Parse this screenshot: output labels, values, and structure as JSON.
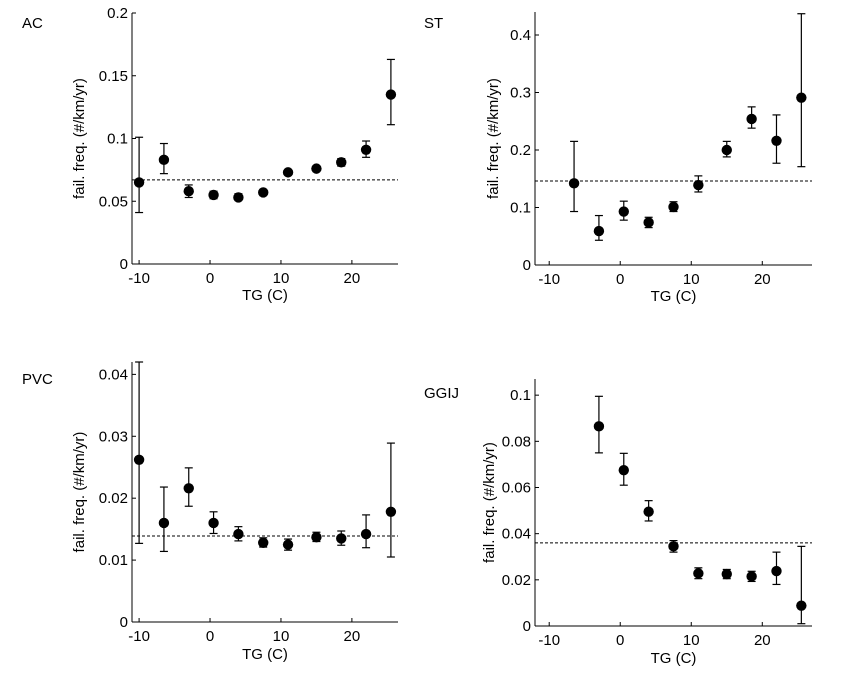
{
  "figure": {
    "background": "#ffffff",
    "marker_color": "#000000"
  },
  "chart_data": [
    {
      "type": "scatter",
      "panel_label": "AC",
      "xlabel": "TG (C)",
      "ylabel": "fail. freq. (#/km/yr)",
      "xlim": [
        -11,
        26.5
      ],
      "ylim": [
        0,
        0.2
      ],
      "xticks": [
        -10,
        0,
        10,
        20
      ],
      "xtick_labels": [
        "-10",
        "0",
        "10",
        "20"
      ],
      "yticks": [
        0,
        0.05,
        0.1,
        0.15,
        0.2
      ],
      "ytick_labels": [
        "0",
        "0.05",
        "0.1",
        "0.15",
        "0.2"
      ],
      "reference_line": 0.067,
      "series": [
        {
          "x": [
            -10,
            -6.5,
            -3,
            0.5,
            4,
            7.5,
            11,
            15,
            18.5,
            22,
            25.5
          ],
          "y": [
            0.065,
            0.083,
            0.058,
            0.055,
            0.053,
            0.057,
            0.073,
            0.076,
            0.081,
            0.091,
            0.135
          ],
          "err_low": [
            0.041,
            0.072,
            0.053,
            0.052,
            0.051,
            0.055,
            0.071,
            0.074,
            0.078,
            0.085,
            0.111
          ],
          "err_high": [
            0.101,
            0.096,
            0.063,
            0.058,
            0.056,
            0.059,
            0.075,
            0.078,
            0.084,
            0.098,
            0.163
          ]
        }
      ]
    },
    {
      "type": "scatter",
      "panel_label": "ST",
      "xlabel": "TG (C)",
      "ylabel": "fail. freq. (#/km/yr)",
      "xlim": [
        -12,
        27
      ],
      "ylim": [
        0,
        0.44
      ],
      "xticks": [
        -10,
        0,
        10,
        20
      ],
      "xtick_labels": [
        "-10",
        "0",
        "10",
        "20"
      ],
      "yticks": [
        0,
        0.1,
        0.2,
        0.3,
        0.4
      ],
      "ytick_labels": [
        "0",
        "0.1",
        "0.2",
        "0.3",
        "0.4"
      ],
      "reference_line": 0.146,
      "series": [
        {
          "x": [
            -6.5,
            -3,
            0.5,
            4,
            7.5,
            11,
            15,
            18.5,
            22,
            25.5
          ],
          "y": [
            0.142,
            0.059,
            0.093,
            0.074,
            0.101,
            0.139,
            0.2,
            0.254,
            0.216,
            0.291
          ],
          "err_low": [
            0.093,
            0.043,
            0.078,
            0.065,
            0.093,
            0.127,
            0.188,
            0.238,
            0.177,
            0.171
          ],
          "err_high": [
            0.215,
            0.086,
            0.111,
            0.083,
            0.11,
            0.155,
            0.215,
            0.275,
            0.261,
            0.437
          ]
        }
      ]
    },
    {
      "type": "scatter",
      "panel_label": "PVC",
      "xlabel": "TG (C)",
      "ylabel": "fail. freq. (#/km/yr)",
      "xlim": [
        -11,
        26.5
      ],
      "ylim": [
        0,
        0.042
      ],
      "xticks": [
        -10,
        0,
        10,
        20
      ],
      "xtick_labels": [
        "-10",
        "0",
        "10",
        "20"
      ],
      "yticks": [
        0,
        0.01,
        0.02,
        0.03,
        0.04
      ],
      "ytick_labels": [
        "0",
        "0.01",
        "0.02",
        "0.03",
        "0.04"
      ],
      "reference_line": 0.0139,
      "series": [
        {
          "x": [
            -10,
            -6.5,
            -3,
            0.5,
            4,
            7.5,
            11,
            15,
            18.5,
            22,
            25.5
          ],
          "y": [
            0.0262,
            0.016,
            0.0216,
            0.016,
            0.0142,
            0.0128,
            0.0125,
            0.0137,
            0.0135,
            0.0142,
            0.0178
          ],
          "err_low": [
            0.0127,
            0.0114,
            0.0187,
            0.0143,
            0.0131,
            0.0121,
            0.0116,
            0.013,
            0.0124,
            0.012,
            0.0105
          ],
          "err_high": [
            0.042,
            0.0218,
            0.0249,
            0.0178,
            0.0154,
            0.0136,
            0.0134,
            0.0145,
            0.0147,
            0.0173,
            0.0289
          ]
        }
      ]
    },
    {
      "type": "scatter",
      "panel_label": "GGIJ",
      "xlabel": "TG (C)",
      "ylabel": "fail. freq. (#/km/yr)",
      "xlim": [
        -12,
        27
      ],
      "ylim": [
        0,
        0.107
      ],
      "xticks": [
        -10,
        0,
        10,
        20
      ],
      "xtick_labels": [
        "-10",
        "0",
        "10",
        "20"
      ],
      "yticks": [
        0,
        0.02,
        0.04,
        0.06,
        0.08,
        0.1
      ],
      "ytick_labels": [
        "0",
        "0.02",
        "0.04",
        "0.06",
        "0.08",
        "0.1"
      ],
      "reference_line": 0.036,
      "series": [
        {
          "x": [
            -3,
            0.5,
            4,
            7.5,
            11,
            15,
            18.5,
            22,
            25.5
          ],
          "y": [
            0.0865,
            0.0675,
            0.0495,
            0.0345,
            0.0228,
            0.0225,
            0.0215,
            0.0238,
            0.0088
          ],
          "err_low": [
            0.075,
            0.061,
            0.0455,
            0.032,
            0.0205,
            0.0205,
            0.0193,
            0.018,
            0.001
          ],
          "err_high": [
            0.0995,
            0.0748,
            0.0543,
            0.037,
            0.0252,
            0.0245,
            0.0237,
            0.032,
            0.0345
          ]
        }
      ]
    }
  ]
}
